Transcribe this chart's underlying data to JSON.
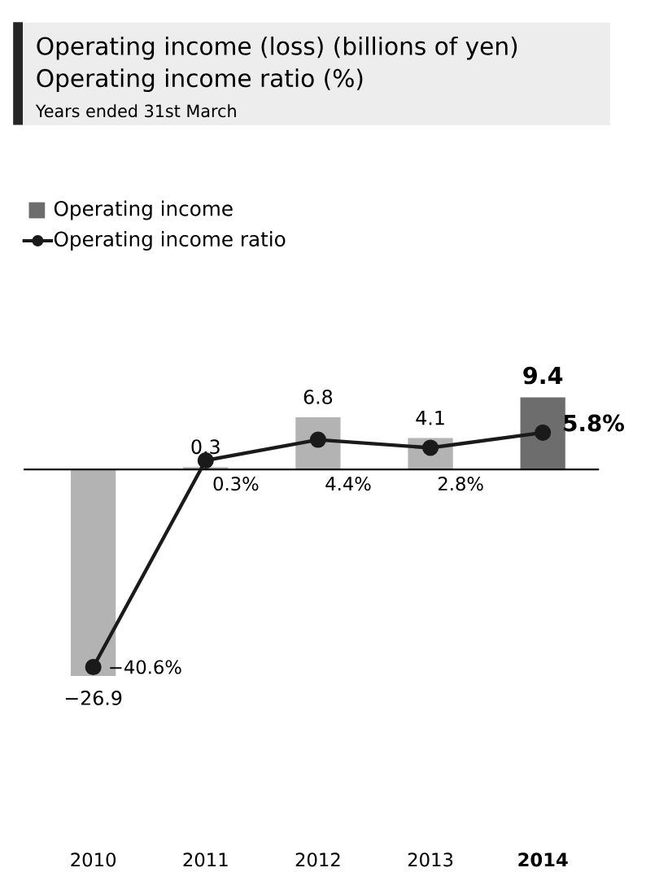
{
  "chart_data": {
    "type": "bar",
    "title": "Operating income (loss) (billions of yen)",
    "subtitle": "Operating income ratio (%)",
    "annotations": [
      "Years ended 31st March"
    ],
    "categories": [
      "2010",
      "2011",
      "2012",
      "2013",
      "2014"
    ],
    "series": [
      {
        "name": "Operating income",
        "color": "#6d6d6d",
        "colors": [
          "#b3b3b3",
          "#b3b3b3",
          "#b3b3b3",
          "#b3b3b3",
          "#6d6d6d"
        ],
        "values": [
          -26.9,
          0.3,
          6.8,
          4.1,
          9.4
        ],
        "value_labels": [
          "−26.9",
          "0.3",
          "6.8",
          "4.1",
          "9.4"
        ]
      },
      {
        "name": "Operating income ratio",
        "type": "line",
        "axis": "y2",
        "color": "#1a1a1a",
        "values": [
          -40.6,
          0.3,
          4.4,
          2.8,
          5.8
        ],
        "value_labels": [
          "−40.6%",
          "0.3%",
          "4.4%",
          "2.8%",
          "5.8%"
        ]
      }
    ],
    "tick_labels": "x",
    "legend": "top left",
    "marker": "circle",
    "line_style": "solid"
  }
}
